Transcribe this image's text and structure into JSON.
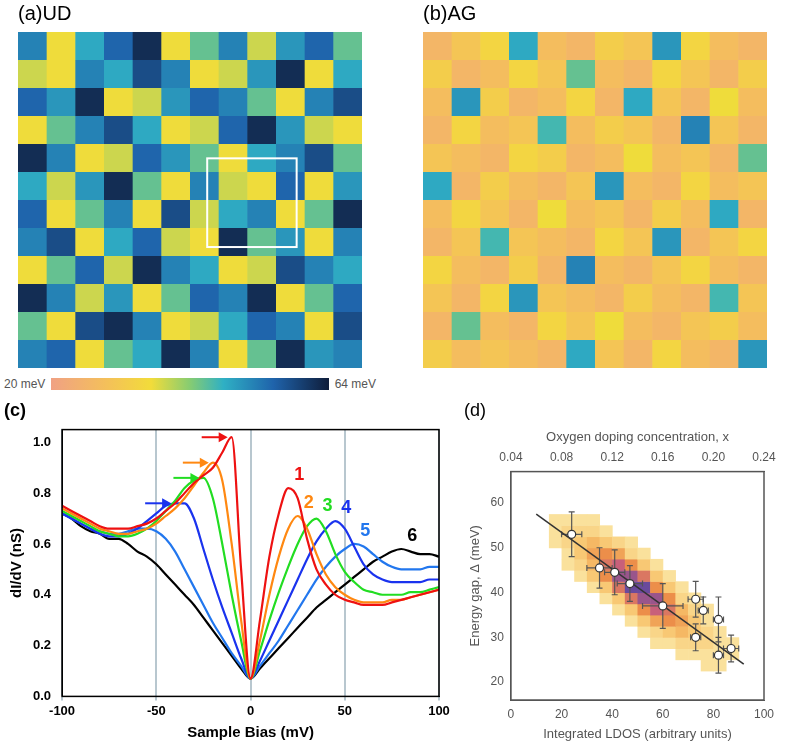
{
  "chart_data": [
    {
      "type": "heatmap",
      "title": "(a)UD",
      "tick_labels": false,
      "cells": [
        [
          52,
          36,
          48,
          55,
          62,
          36,
          44,
          52,
          38,
          50,
          55,
          44
        ],
        [
          38,
          36,
          52,
          48,
          58,
          52,
          36,
          38,
          50,
          62,
          36,
          48
        ],
        [
          55,
          50,
          62,
          36,
          38,
          50,
          55,
          52,
          44,
          36,
          52,
          58
        ],
        [
          36,
          44,
          52,
          58,
          48,
          36,
          38,
          55,
          62,
          50,
          38,
          36
        ],
        [
          62,
          52,
          36,
          38,
          55,
          50,
          44,
          36,
          48,
          52,
          58,
          44
        ],
        [
          48,
          38,
          50,
          62,
          44,
          36,
          52,
          38,
          36,
          55,
          36,
          50
        ],
        [
          55,
          36,
          44,
          52,
          36,
          58,
          38,
          48,
          52,
          36,
          44,
          62
        ],
        [
          52,
          58,
          36,
          48,
          55,
          38,
          36,
          62,
          44,
          50,
          36,
          52
        ],
        [
          36,
          44,
          55,
          38,
          62,
          52,
          48,
          36,
          38,
          58,
          52,
          48
        ],
        [
          62,
          52,
          38,
          50,
          36,
          44,
          55,
          52,
          62,
          36,
          44,
          55
        ],
        [
          44,
          36,
          58,
          62,
          52,
          36,
          38,
          48,
          55,
          52,
          36,
          58
        ],
        [
          52,
          55,
          36,
          44,
          48,
          62,
          52,
          36,
          44,
          62,
          50,
          52
        ]
      ],
      "colorbar": {
        "range": [
          20,
          64
        ],
        "ticks": [
          {
            "value": 20,
            "label": "20 meV"
          },
          {
            "value": 64,
            "label": "64 meV"
          }
        ]
      }
    },
    {
      "type": "heatmap",
      "title": "(b)AG",
      "tick_labels": false,
      "cells": [
        [
          26,
          30,
          34,
          48,
          28,
          26,
          32,
          30,
          50,
          34,
          28,
          26
        ],
        [
          32,
          26,
          28,
          34,
          30,
          44,
          28,
          26,
          34,
          30,
          26,
          32
        ],
        [
          28,
          50,
          32,
          26,
          28,
          34,
          26,
          48,
          30,
          26,
          36,
          28
        ],
        [
          26,
          34,
          28,
          30,
          46,
          28,
          32,
          30,
          26,
          52,
          30,
          26
        ],
        [
          30,
          28,
          26,
          34,
          32,
          26,
          28,
          36,
          28,
          30,
          26,
          44
        ],
        [
          48,
          26,
          32,
          28,
          26,
          30,
          50,
          28,
          26,
          34,
          28,
          30
        ],
        [
          28,
          34,
          30,
          26,
          36,
          28,
          30,
          26,
          32,
          28,
          48,
          26
        ],
        [
          26,
          30,
          46,
          30,
          28,
          26,
          34,
          30,
          50,
          26,
          30,
          34
        ],
        [
          34,
          28,
          26,
          32,
          26,
          52,
          28,
          26,
          30,
          34,
          28,
          26
        ],
        [
          30,
          26,
          34,
          50,
          30,
          28,
          26,
          32,
          28,
          26,
          46,
          30
        ],
        [
          26,
          44,
          28,
          26,
          34,
          30,
          36,
          28,
          26,
          30,
          32,
          28
        ],
        [
          32,
          28,
          30,
          28,
          26,
          48,
          30,
          26,
          34,
          28,
          26,
          50
        ]
      ]
    },
    {
      "type": "line",
      "title": "(c)",
      "xlabel": "Sample Bias (mV)",
      "ylabel": "dI/dV (nS)",
      "xlim": [
        -100,
        100
      ],
      "xticks": [
        -100,
        -50,
        0,
        50,
        100
      ],
      "ylim": [
        0,
        1.05
      ],
      "yticks": [
        {
          "value": 0,
          "label": "0.0"
        },
        0.2,
        0.4,
        0.6,
        0.8,
        {
          "value": 1,
          "label": "1.0"
        }
      ],
      "grid": "x",
      "x": [
        -100,
        -95,
        -90,
        -85,
        -80,
        -75,
        -70,
        -65,
        -60,
        -55,
        -50,
        -45,
        -40,
        -35,
        -30,
        -25,
        -20,
        -15,
        -10,
        -5,
        0,
        5,
        10,
        15,
        20,
        25,
        30,
        35,
        40,
        45,
        50,
        55,
        60,
        65,
        70,
        75,
        80,
        85,
        90,
        95,
        100
      ],
      "series": [
        {
          "name": "1",
          "color": "#ee1111",
          "values": [
            0.75,
            0.73,
            0.71,
            0.69,
            0.67,
            0.66,
            0.66,
            0.66,
            0.67,
            0.68,
            0.7,
            0.73,
            0.76,
            0.8,
            0.84,
            0.87,
            0.9,
            0.96,
            1.02,
            0.5,
            0.07,
            0.3,
            0.55,
            0.72,
            0.82,
            0.78,
            0.62,
            0.5,
            0.44,
            0.4,
            0.38,
            0.37,
            0.36,
            0.36,
            0.36,
            0.37,
            0.38,
            0.39,
            0.4,
            0.41,
            0.42
          ]
        },
        {
          "name": "2",
          "color": "#ff8811",
          "values": [
            0.74,
            0.72,
            0.7,
            0.68,
            0.66,
            0.65,
            0.64,
            0.64,
            0.65,
            0.66,
            0.68,
            0.71,
            0.74,
            0.78,
            0.83,
            0.88,
            0.92,
            0.85,
            0.6,
            0.3,
            0.07,
            0.22,
            0.4,
            0.55,
            0.66,
            0.71,
            0.66,
            0.56,
            0.48,
            0.43,
            0.4,
            0.38,
            0.37,
            0.37,
            0.37,
            0.38,
            0.38,
            0.39,
            0.4,
            0.41,
            0.42
          ]
        },
        {
          "name": "3",
          "color": "#22dd22",
          "values": [
            0.73,
            0.71,
            0.69,
            0.67,
            0.65,
            0.64,
            0.63,
            0.63,
            0.64,
            0.66,
            0.69,
            0.73,
            0.77,
            0.82,
            0.85,
            0.86,
            0.78,
            0.6,
            0.4,
            0.22,
            0.07,
            0.18,
            0.3,
            0.41,
            0.51,
            0.6,
            0.67,
            0.7,
            0.65,
            0.56,
            0.49,
            0.45,
            0.42,
            0.41,
            0.4,
            0.4,
            0.4,
            0.41,
            0.41,
            0.42,
            0.43
          ]
        },
        {
          "name": "4",
          "color": "#1a33ee",
          "values": [
            0.72,
            0.7,
            0.68,
            0.66,
            0.64,
            0.63,
            0.63,
            0.64,
            0.66,
            0.69,
            0.72,
            0.75,
            0.76,
            0.76,
            0.7,
            0.58,
            0.46,
            0.35,
            0.25,
            0.15,
            0.07,
            0.14,
            0.22,
            0.3,
            0.38,
            0.46,
            0.54,
            0.61,
            0.66,
            0.69,
            0.66,
            0.59,
            0.52,
            0.48,
            0.46,
            0.45,
            0.45,
            0.45,
            0.45,
            0.46,
            0.46
          ]
        },
        {
          "name": "5",
          "color": "#2277ee",
          "values": [
            0.72,
            0.7,
            0.68,
            0.66,
            0.65,
            0.64,
            0.64,
            0.65,
            0.66,
            0.66,
            0.65,
            0.62,
            0.57,
            0.5,
            0.43,
            0.36,
            0.29,
            0.23,
            0.17,
            0.12,
            0.07,
            0.12,
            0.17,
            0.22,
            0.28,
            0.34,
            0.4,
            0.46,
            0.51,
            0.55,
            0.58,
            0.6,
            0.59,
            0.56,
            0.53,
            0.51,
            0.5,
            0.5,
            0.5,
            0.51,
            0.51
          ]
        },
        {
          "name": "6",
          "color": "#000000",
          "values": [
            0.72,
            0.7,
            0.67,
            0.65,
            0.64,
            0.62,
            0.62,
            0.6,
            0.57,
            0.55,
            0.52,
            0.48,
            0.44,
            0.4,
            0.36,
            0.31,
            0.26,
            0.21,
            0.16,
            0.11,
            0.07,
            0.11,
            0.15,
            0.19,
            0.23,
            0.27,
            0.31,
            0.35,
            0.38,
            0.41,
            0.44,
            0.47,
            0.5,
            0.53,
            0.55,
            0.57,
            0.58,
            0.57,
            0.56,
            0.56,
            0.55
          ]
        }
      ]
    },
    {
      "type": "scatter",
      "title": "(d)",
      "xlabel": "Integrated LDOS (arbitrary units)",
      "ylabel": "Energy gap, Δ (meV)",
      "x2label": "Oxygen doping concentration, x",
      "xlim": [
        0,
        100
      ],
      "xticks": [
        0,
        20,
        40,
        60,
        80,
        100
      ],
      "ylim": [
        16,
        67
      ],
      "yticks": [
        20,
        30,
        40,
        50,
        60
      ],
      "x2lim": [
        0.04,
        0.24
      ],
      "x2ticks": [
        0.04,
        0.08,
        0.12,
        0.16,
        {
          "value": 0.2,
          "label": "0.20"
        },
        0.24
      ],
      "points": {
        "x": [
          24,
          35,
          41,
          47,
          60,
          73,
          73,
          76,
          82,
          82,
          87
        ],
        "values": [
          53,
          45.5,
          44.5,
          42,
          37,
          38.5,
          30,
          36,
          34,
          26,
          27.5
        ],
        "x_err": [
          4,
          5,
          4,
          5,
          8,
          3,
          2,
          2,
          2,
          2,
          3
        ],
        "y_err": [
          5,
          4.5,
          5,
          4,
          5,
          4,
          3,
          3,
          5,
          4,
          3
        ]
      },
      "fit_line": {
        "x": [
          10,
          92
        ],
        "values": [
          57.5,
          24
        ]
      },
      "density": {
        "x_bins": [
          15,
          20,
          25,
          30,
          35,
          40,
          45,
          50,
          55,
          60,
          65,
          70,
          75,
          80,
          85,
          90
        ],
        "y_bins": [
          22.5,
          25,
          27.5,
          30,
          32.5,
          35,
          37.5,
          40,
          42.5,
          45,
          47.5,
          50,
          52.5,
          55,
          57.5
        ],
        "counts": [
          [
            0,
            0,
            0,
            0,
            0,
            0,
            0,
            0,
            0,
            0,
            0,
            0,
            1,
            1,
            0
          ],
          [
            0,
            0,
            0,
            0,
            0,
            0,
            0,
            0,
            0,
            0,
            1,
            1,
            1,
            1,
            1
          ],
          [
            0,
            0,
            0,
            0,
            0,
            0,
            0,
            0,
            1,
            1,
            2,
            2,
            2,
            1,
            1
          ],
          [
            0,
            0,
            0,
            0,
            0,
            0,
            0,
            1,
            2,
            3,
            4,
            3,
            2,
            1,
            0
          ],
          [
            0,
            0,
            0,
            0,
            0,
            0,
            1,
            3,
            5,
            6,
            5,
            3,
            1,
            0,
            0
          ],
          [
            0,
            0,
            0,
            0,
            0,
            1,
            3,
            6,
            8,
            7,
            4,
            2,
            1,
            0,
            0
          ],
          [
            0,
            0,
            0,
            0,
            1,
            3,
            7,
            9,
            9,
            6,
            2,
            1,
            0,
            0,
            0
          ],
          [
            0,
            0,
            0,
            1,
            3,
            7,
            10,
            10,
            6,
            3,
            1,
            0,
            0,
            0,
            0
          ],
          [
            0,
            0,
            1,
            3,
            6,
            9,
            9,
            7,
            3,
            1,
            0,
            0,
            0,
            0,
            0
          ],
          [
            0,
            1,
            2,
            4,
            7,
            8,
            6,
            3,
            1,
            0,
            0,
            0,
            0,
            0,
            0
          ],
          [
            0,
            1,
            3,
            5,
            6,
            5,
            2,
            1,
            0,
            0,
            0,
            0,
            0,
            0,
            0
          ],
          [
            1,
            2,
            3,
            4,
            3,
            2,
            1,
            0,
            0,
            0,
            0,
            0,
            0,
            0,
            0
          ],
          [
            1,
            2,
            2,
            2,
            1,
            0,
            0,
            0,
            0,
            0,
            0,
            0,
            0,
            0,
            0
          ],
          [
            1,
            1,
            1,
            1,
            0,
            0,
            0,
            0,
            0,
            0,
            0,
            0,
            0,
            0,
            0
          ]
        ]
      }
    }
  ]
}
